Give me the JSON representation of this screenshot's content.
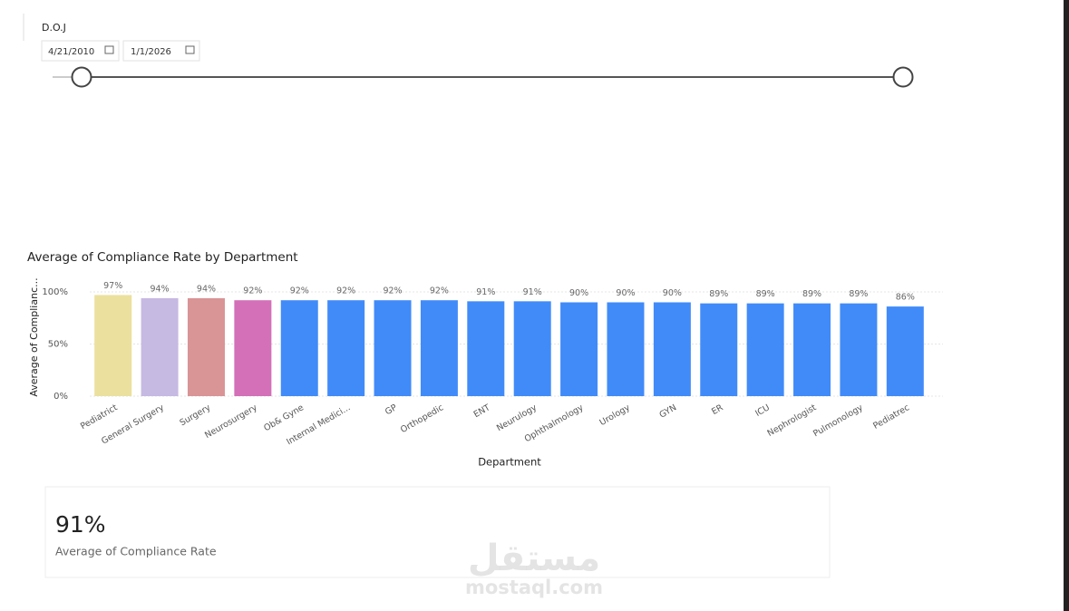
{
  "slicer": {
    "title": "D.O.J",
    "start": "4/21/2010",
    "end": "1/1/2026"
  },
  "chart_data": {
    "type": "bar",
    "title": "Average of Compliance Rate by Department",
    "x_label": "Department",
    "y_label": "Average of Complianc...",
    "categories": [
      "Pediatrict",
      "General Surgery",
      "Surgery",
      "Neurosurgery",
      "Ob& Gyne",
      "Internal Medici...",
      "GP",
      "Orthopedic",
      "ENT",
      "Neurulogy",
      "Ophthalmology",
      "Urology",
      "GYN",
      "ER",
      "ICU",
      "Nephrologist",
      "Pulmonology",
      "Pediatrec"
    ],
    "values": [
      97,
      94,
      94,
      92,
      92,
      92,
      92,
      92,
      91,
      91,
      90,
      90,
      90,
      89,
      89,
      89,
      89,
      86
    ],
    "value_labels": [
      "97%",
      "94%",
      "94%",
      "92%",
      "92%",
      "92%",
      "92%",
      "92%",
      "91%",
      "91%",
      "90%",
      "90%",
      "90%",
      "89%",
      "89%",
      "89%",
      "89%",
      "86%"
    ],
    "colors": [
      "#ebe09e",
      "#c6b9e2",
      "#d99496",
      "#d370b8",
      "#418bf9",
      "#418bf9",
      "#418bf9",
      "#418bf9",
      "#418bf9",
      "#418bf9",
      "#418bf9",
      "#418bf9",
      "#418bf9",
      "#418bf9",
      "#418bf9",
      "#418bf9",
      "#418bf9",
      "#418bf9"
    ],
    "ylim": [
      0,
      100
    ],
    "yticks": [
      {
        "value": 0,
        "label": "0%"
      },
      {
        "value": 50,
        "label": "50%"
      },
      {
        "value": 100,
        "label": "100%"
      }
    ],
    "grid": true
  },
  "card": {
    "value": "91%",
    "label": "Average of Compliance Rate"
  },
  "watermark": {
    "arabic": "مستقل",
    "latin": "mostaql.com"
  }
}
